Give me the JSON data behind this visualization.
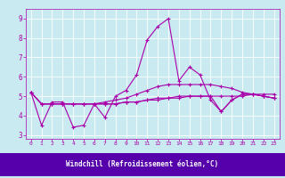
{
  "xlabel": "Windchill (Refroidissement éolien,°C)",
  "xlim": [
    -0.5,
    23.5
  ],
  "ylim": [
    2.8,
    9.5
  ],
  "yticks": [
    3,
    4,
    5,
    6,
    7,
    8,
    9
  ],
  "xticks": [
    0,
    1,
    2,
    3,
    4,
    5,
    6,
    7,
    8,
    9,
    10,
    11,
    12,
    13,
    14,
    15,
    16,
    17,
    18,
    19,
    20,
    21,
    22,
    23
  ],
  "background_color": "#c8eaf0",
  "xlabel_bg_color": "#5500aa",
  "grid_color": "#ffffff",
  "line_color": "#aa00aa",
  "lines": [
    [
      5.2,
      3.5,
      4.7,
      4.7,
      3.4,
      3.5,
      4.6,
      3.9,
      5.0,
      5.3,
      6.1,
      7.9,
      8.6,
      9.0,
      5.8,
      6.5,
      6.1,
      4.8,
      4.2,
      4.8,
      5.1,
      5.1,
      5.0,
      4.9
    ],
    [
      5.2,
      4.6,
      4.6,
      4.6,
      4.6,
      4.6,
      4.6,
      4.6,
      4.6,
      4.7,
      4.7,
      4.8,
      4.8,
      4.9,
      4.9,
      5.0,
      5.0,
      5.0,
      5.0,
      5.0,
      5.0,
      5.1,
      5.1,
      5.1
    ],
    [
      5.2,
      4.6,
      4.6,
      4.6,
      4.6,
      4.6,
      4.6,
      4.6,
      4.6,
      4.7,
      4.7,
      4.8,
      4.9,
      4.9,
      5.0,
      5.0,
      5.0,
      5.0,
      4.2,
      4.8,
      5.1,
      5.1,
      5.0,
      4.9
    ],
    [
      5.2,
      4.6,
      4.6,
      4.6,
      4.6,
      4.6,
      4.6,
      4.7,
      4.8,
      4.9,
      5.1,
      5.3,
      5.5,
      5.6,
      5.6,
      5.6,
      5.6,
      5.6,
      5.5,
      5.4,
      5.2,
      5.1,
      5.0,
      4.9
    ]
  ],
  "marker": "+",
  "marker_size": 3,
  "line_width": 0.8
}
